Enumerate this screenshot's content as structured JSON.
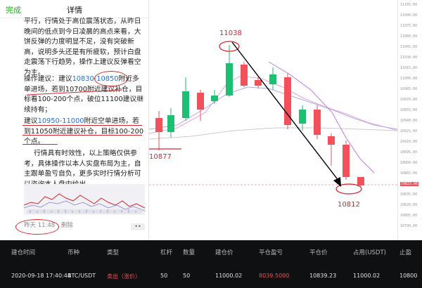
{
  "phone": {
    "done_label": "完成",
    "title": "详情",
    "para1": "平行，行情处于高位震荡状态，从昨日晚间的低点到今日凌晨的高点来看，大饼反弹的力度明显不足，没有突破新高，说明多头还是有所疲软，预计白盘走震荡下行趋势，操作上建议反弹看空为主。",
    "para2_a": "操作建议：建议",
    "para2_b": "10830-10850",
    "para2_c": "附近多单进场，若到10700附近建议补仓，目标看100-200个点，破位11100建议继续持有；",
    "para3_a": "建议",
    "para3_b": "10950-11000",
    "para3_c": "附近空单进场，若到11050附近建议补仓，目标100-200个点。",
    "para4": "行情具有时效性，以上策略仅供参考，具体操作以本人实盘布局为主，自主跟单盈亏自负，更多实时行情分析可以咨询本人盘中给出。",
    "time_label": "昨天 11:48",
    "delete_label": "删除",
    "more_label": "••"
  },
  "chart": {
    "high_label": "11038",
    "low_left_label": "10877",
    "low_right_label": "10812",
    "price_ticks": [
      "11105.00",
      "11090.00",
      "11075.00",
      "11060.00",
      "11045.00",
      "11030.00",
      "11015.00",
      "11000.00",
      "10985.00",
      "10970.00",
      "10955.00",
      "10940.00",
      "10925.00",
      "10910.00",
      "10895.00",
      "10880.00",
      "10865.00",
      "10850.00",
      "10835.00",
      "10820.00",
      "10805.00",
      "10790.00"
    ],
    "current_price": "10823.06",
    "colors": {
      "up": "#1dbf73",
      "down": "#f2505a",
      "annotation": "#d9262c"
    }
  },
  "table": {
    "headers": [
      "建仓时间",
      "币种",
      "类型",
      "杠杆",
      "数量",
      "建仓价",
      "平仓盈亏",
      "平仓价",
      "占用(USDT)",
      "止盈"
    ],
    "row": [
      "2020-09-18 17:40:44",
      "BTC/USDT",
      "卖出（涨价）",
      "50",
      "50",
      "11000.02",
      "8039.5000",
      "10839.23",
      "11000.02",
      "10800"
    ]
  }
}
